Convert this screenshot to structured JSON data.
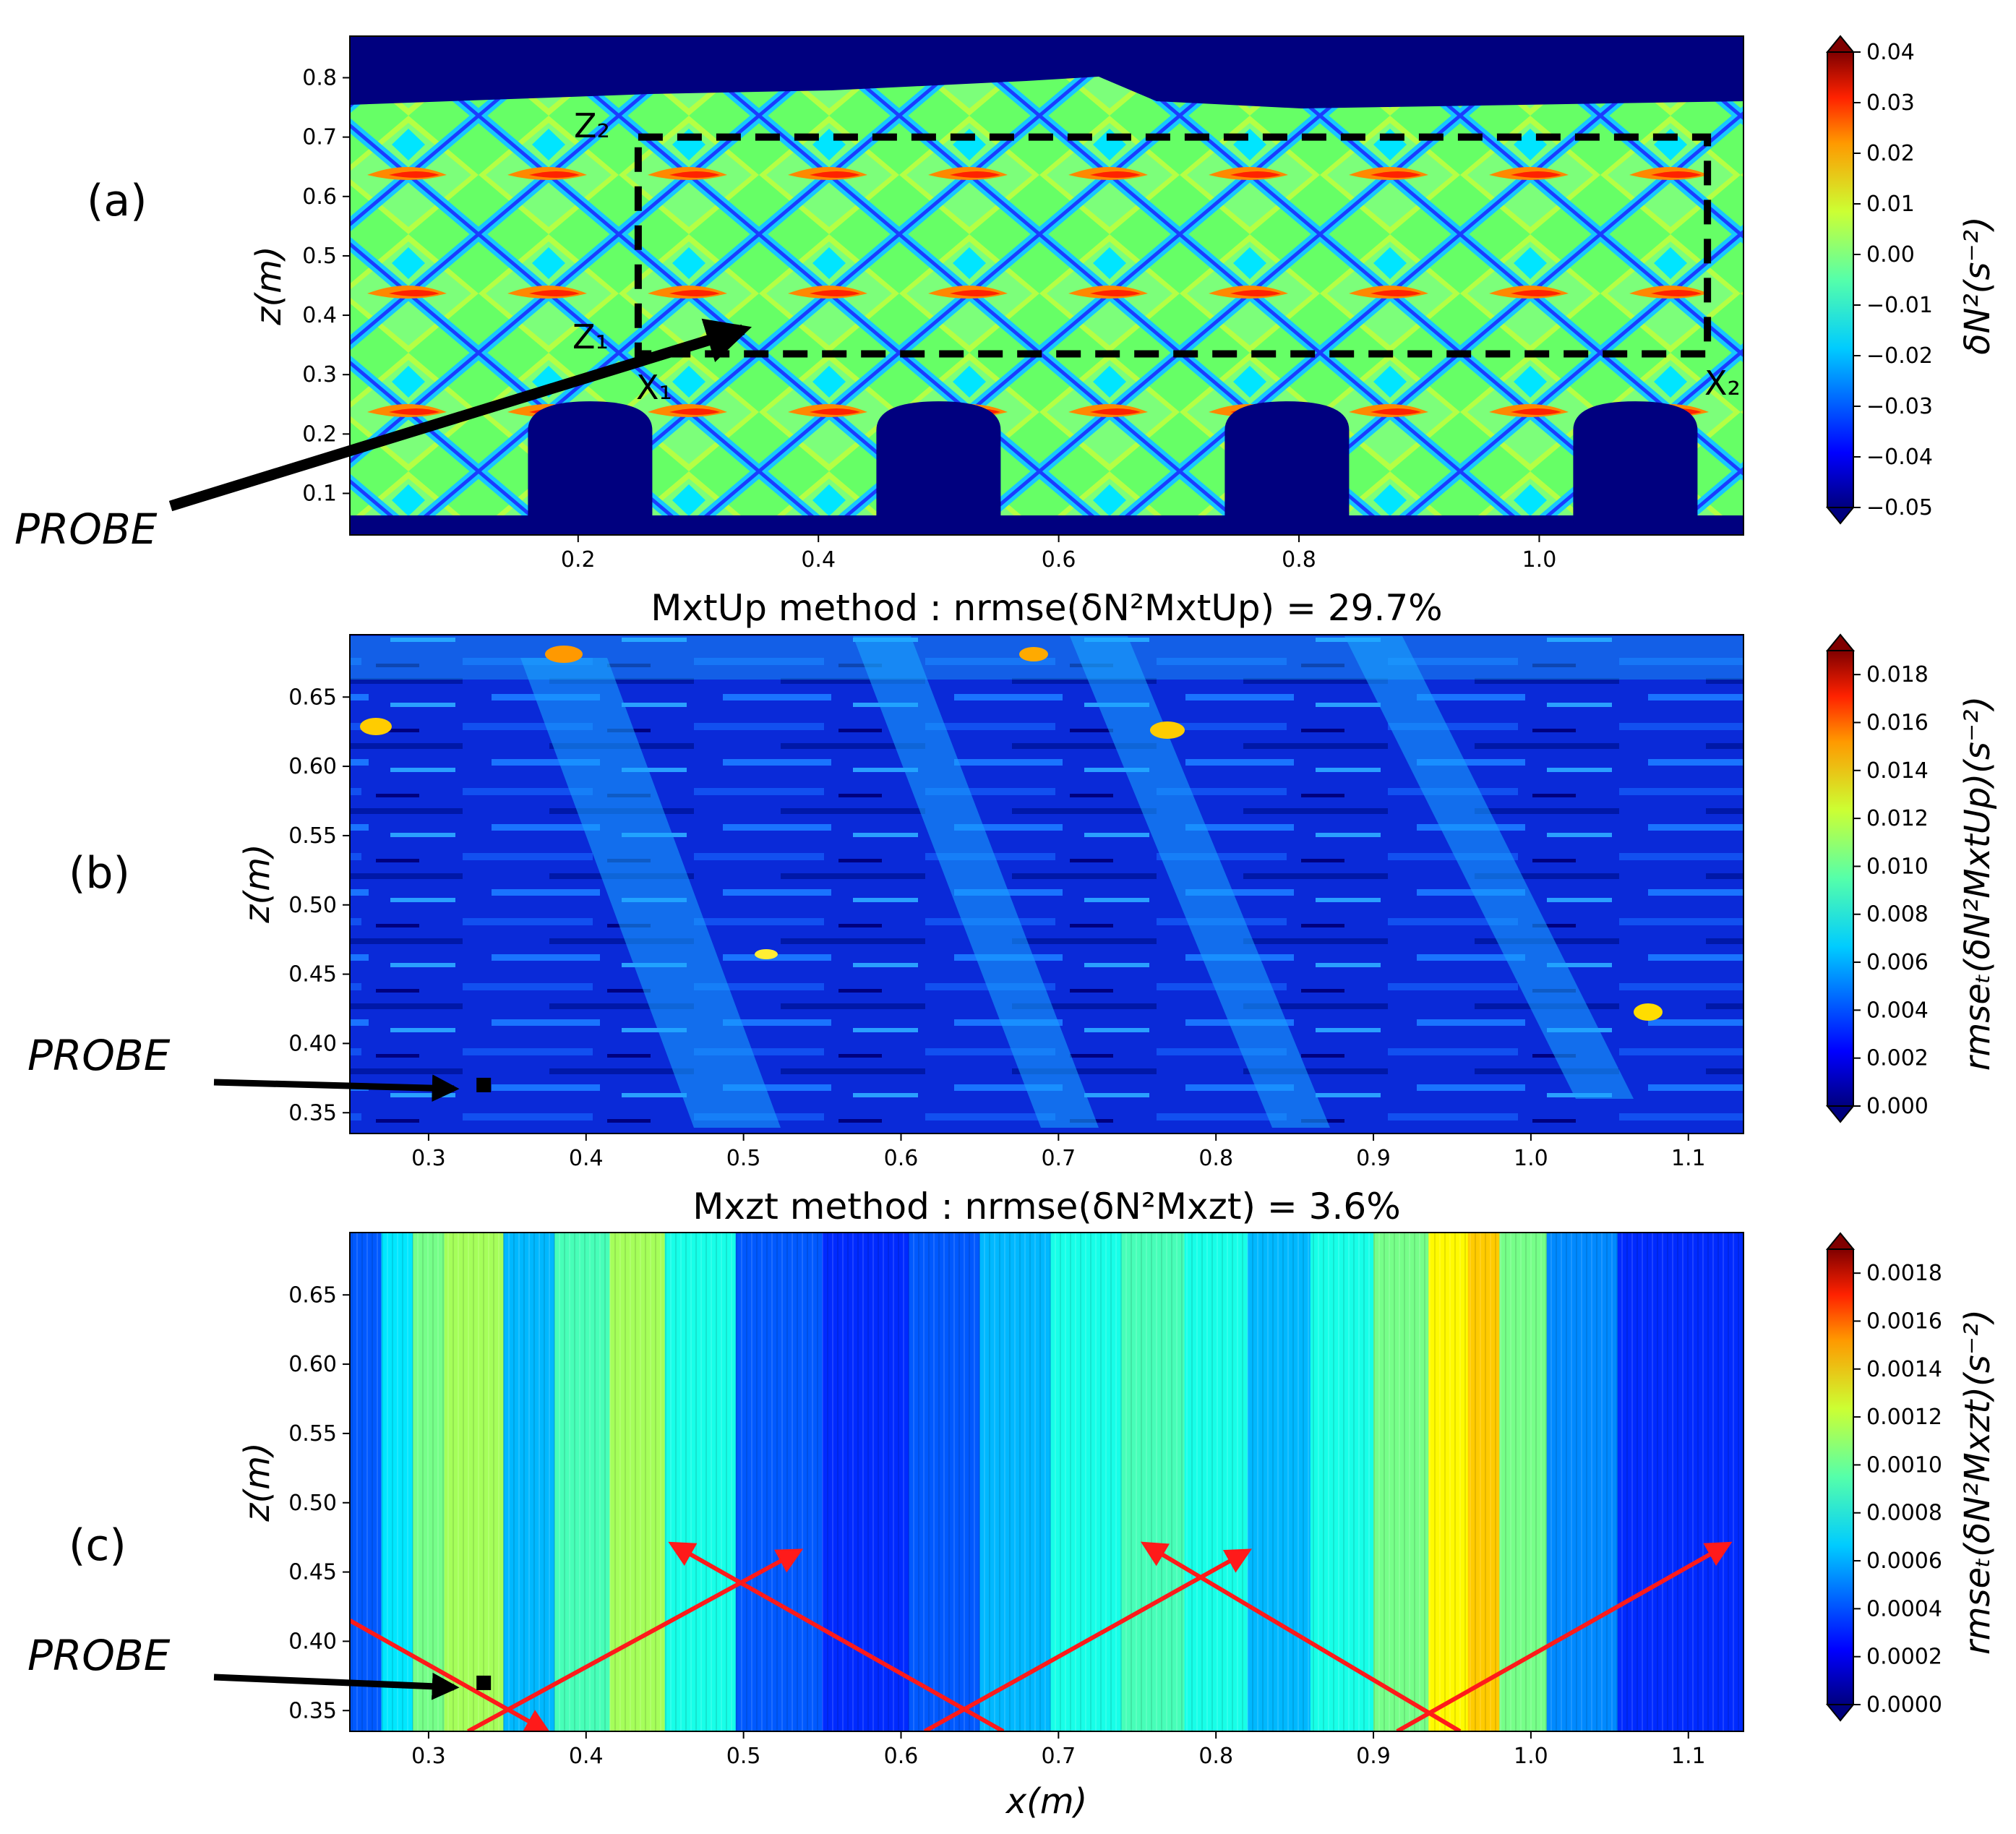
{
  "figure": {
    "panels": [
      {
        "id": "a",
        "label": "(a)",
        "xlabel": "",
        "ylabel": "z(m)",
        "xlim": [
          0.01,
          1.17
        ],
        "ylim": [
          0.03,
          0.87
        ],
        "xticks": [
          "0.2",
          "0.4",
          "0.6",
          "0.8",
          "1.0"
        ],
        "yticks": [
          "0.1",
          "0.2",
          "0.3",
          "0.4",
          "0.5",
          "0.6",
          "0.7",
          "0.8"
        ],
        "title": "",
        "cbar_label": "δN²(s⁻²)",
        "cbar_ticks": [
          "0.04",
          "0.03",
          "0.02",
          "0.01",
          "0.00",
          "−0.01",
          "−0.02",
          "−0.03",
          "−0.04",
          "−0.05"
        ],
        "cbar_range": [
          -0.05,
          0.04
        ],
        "probe": "PROBE",
        "box_labels": {
          "z2": "Z₂",
          "z1": "Z₁",
          "x1": "X₁",
          "x2": "X₂"
        }
      },
      {
        "id": "b",
        "label": "(b)",
        "xlabel": "",
        "ylabel": "z(m)",
        "xlim": [
          0.25,
          1.135
        ],
        "ylim": [
          0.335,
          0.695
        ],
        "xticks": [
          "0.3",
          "0.4",
          "0.5",
          "0.6",
          "0.7",
          "0.8",
          "0.9",
          "1.0",
          "1.1"
        ],
        "yticks": [
          "0.35",
          "0.40",
          "0.45",
          "0.50",
          "0.55",
          "0.60",
          "0.65"
        ],
        "title": "MxtUp method : nrmse(δN²MxtUp) = 29.7%",
        "cbar_label": "rmseₜ(δN²MxtUp)(s⁻²)",
        "cbar_ticks": [
          "0.018",
          "0.016",
          "0.014",
          "0.012",
          "0.010",
          "0.008",
          "0.006",
          "0.004",
          "0.002",
          "0.000"
        ],
        "cbar_range": [
          0,
          0.019
        ],
        "probe": "PROBE",
        "nrmse_percent": 29.7
      },
      {
        "id": "c",
        "label": "(c)",
        "xlabel": "x(m)",
        "ylabel": "z(m)",
        "xlim": [
          0.25,
          1.135
        ],
        "ylim": [
          0.335,
          0.695
        ],
        "xticks": [
          "0.3",
          "0.4",
          "0.5",
          "0.6",
          "0.7",
          "0.8",
          "0.9",
          "1.0",
          "1.1"
        ],
        "yticks": [
          "0.35",
          "0.40",
          "0.45",
          "0.50",
          "0.55",
          "0.60",
          "0.65"
        ],
        "title": "Mxzt method : nrmse(δN²Mxzt) = 3.6%",
        "cbar_label": "rmseₜ(δN²Mxzt)(s⁻²)",
        "cbar_ticks": [
          "0.0018",
          "0.0016",
          "0.0014",
          "0.0012",
          "0.0010",
          "0.0008",
          "0.0006",
          "0.0004",
          "0.0002",
          "0.0000"
        ],
        "cbar_range": [
          0,
          0.0019
        ],
        "probe": "PROBE",
        "nrmse_percent": 3.6
      }
    ]
  },
  "chart_data": [
    {
      "type": "heatmap",
      "title": "",
      "xlabel": "",
      "ylabel": "z(m)",
      "xlim": [
        0.01,
        1.17
      ],
      "ylim": [
        0.03,
        0.87
      ],
      "colorbar_label": "δN²(s⁻²)",
      "colorbar_range": [
        -0.05,
        0.04
      ],
      "dashed_box": {
        "x1": 0.25,
        "x2": 1.14,
        "z1": 0.335,
        "z2": 0.7
      },
      "obstacles_x": [
        0.21,
        0.5,
        0.79,
        1.08
      ],
      "probe": {
        "x": 0.34,
        "z": 0.37
      }
    },
    {
      "type": "heatmap",
      "title": "MxtUp method : nrmse(δN²MxtUp) = 29.7%",
      "xlabel": "",
      "ylabel": "z(m)",
      "xlim": [
        0.25,
        1.135
      ],
      "ylim": [
        0.335,
        0.695
      ],
      "colorbar_label": "rmseₜ(δN²MxtUp)(s⁻²)",
      "colorbar_range": [
        0,
        0.019
      ],
      "nrmse_percent": 29.7,
      "probe": {
        "x": 0.335,
        "z": 0.37
      }
    },
    {
      "type": "heatmap",
      "title": "Mxzt method : nrmse(δN²Mxzt) = 3.6%",
      "xlabel": "x(m)",
      "ylabel": "z(m)",
      "xlim": [
        0.25,
        1.135
      ],
      "ylim": [
        0.335,
        0.695
      ],
      "colorbar_label": "rmseₜ(δN²Mxzt)(s⁻²)",
      "colorbar_range": [
        0,
        0.0019
      ],
      "nrmse_percent": 3.6,
      "probe": {
        "x": 0.335,
        "z": 0.37
      },
      "ray_arrows": [
        {
          "from": [
            0.25,
            0.415
          ],
          "to": [
            0.375,
            0.335
          ]
        },
        {
          "from": [
            0.325,
            0.335
          ],
          "to": [
            0.535,
            0.465
          ]
        },
        {
          "from": [
            0.665,
            0.335
          ],
          "to": [
            0.455,
            0.47
          ]
        },
        {
          "from": [
            0.615,
            0.335
          ],
          "to": [
            0.82,
            0.465
          ]
        },
        {
          "from": [
            0.955,
            0.335
          ],
          "to": [
            0.755,
            0.47
          ]
        },
        {
          "from": [
            0.915,
            0.335
          ],
          "to": [
            1.125,
            0.47
          ]
        }
      ],
      "column_profile": {
        "x": [
          0.26,
          0.28,
          0.3,
          0.32,
          0.335,
          0.36,
          0.4,
          0.43,
          0.47,
          0.52,
          0.58,
          0.63,
          0.67,
          0.72,
          0.76,
          0.8,
          0.84,
          0.88,
          0.92,
          0.95,
          0.97,
          0.99,
          1.03,
          1.08,
          1.13
        ],
        "level": [
          0.0002,
          0.0005,
          0.0008,
          0.0009,
          0.0009,
          0.0004,
          0.0007,
          0.0009,
          0.0006,
          0.0002,
          0.0001,
          0.0002,
          0.0004,
          0.0006,
          0.0007,
          0.0006,
          0.0004,
          0.0006,
          0.0008,
          0.0011,
          0.0012,
          0.0008,
          0.0003,
          0.0001,
          0.0001
        ]
      }
    }
  ]
}
